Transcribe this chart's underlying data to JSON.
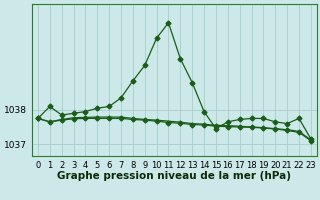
{
  "xlabel": "Graphe pression niveau de la mer (hPa)",
  "bg_color": "#cce8e8",
  "grid_color": "#aacccc",
  "line_color": "#1a5c1a",
  "x": [
    0,
    1,
    2,
    3,
    4,
    5,
    6,
    7,
    8,
    9,
    10,
    11,
    12,
    13,
    14,
    15,
    16,
    17,
    18,
    19,
    20,
    21,
    22,
    23
  ],
  "series1": [
    1037.75,
    1038.1,
    1037.85,
    1037.9,
    1037.95,
    1038.05,
    1038.1,
    1038.35,
    1038.85,
    1039.3,
    1040.1,
    1040.55,
    1039.5,
    1038.8,
    1037.95,
    1037.45,
    1037.65,
    1037.72,
    1037.75,
    1037.75,
    1037.65,
    1037.6,
    1037.75,
    1037.15
  ],
  "series2": [
    1037.75,
    1037.65,
    1037.72,
    1037.77,
    1037.78,
    1037.79,
    1037.79,
    1037.79,
    1037.75,
    1037.72,
    1037.7,
    1037.67,
    1037.64,
    1037.6,
    1037.58,
    1037.55,
    1037.54,
    1037.52,
    1037.5,
    1037.48,
    1037.45,
    1037.42,
    1037.37,
    1037.12
  ],
  "series3": [
    1037.75,
    1037.65,
    1037.7,
    1037.74,
    1037.75,
    1037.75,
    1037.75,
    1037.75,
    1037.72,
    1037.7,
    1037.67,
    1037.63,
    1037.61,
    1037.57,
    1037.56,
    1037.52,
    1037.51,
    1037.5,
    1037.49,
    1037.47,
    1037.44,
    1037.4,
    1037.34,
    1037.1
  ],
  "yticks": [
    1037,
    1038
  ],
  "ylim": [
    1036.65,
    1041.1
  ],
  "xlim": [
    -0.5,
    23.5
  ],
  "xlabel_fontsize": 7.5,
  "tick_fontsize": 6.5
}
